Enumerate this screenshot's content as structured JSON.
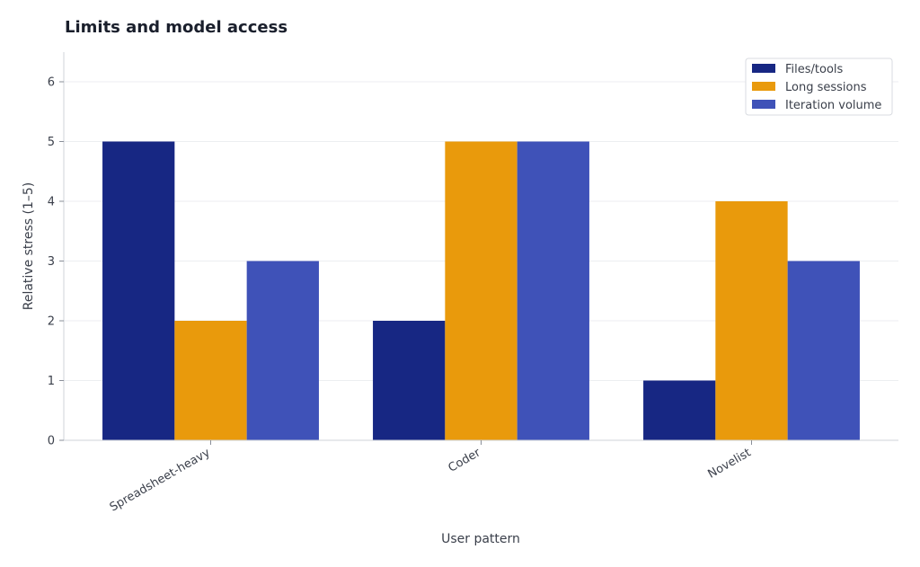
{
  "chart_data": {
    "type": "bar",
    "title": "Limits and model access",
    "xlabel": "User pattern",
    "ylabel": "Relative stress (1–5)",
    "categories": [
      "Spreadsheet-heavy",
      "Coder",
      "Novelist"
    ],
    "series": [
      {
        "name": "Files/tools",
        "values": [
          5,
          2,
          1
        ],
        "color": "#172783"
      },
      {
        "name": "Long sessions",
        "values": [
          2,
          5,
          4
        ],
        "color": "#e99a0c"
      },
      {
        "name": "Iteration volume",
        "values": [
          3,
          5,
          3
        ],
        "color": "#3f52b8"
      }
    ],
    "ylim": [
      0,
      6.5
    ],
    "yticks": [
      0,
      1,
      2,
      3,
      4,
      5,
      6
    ],
    "grid": true,
    "legend_position": "top-right"
  }
}
